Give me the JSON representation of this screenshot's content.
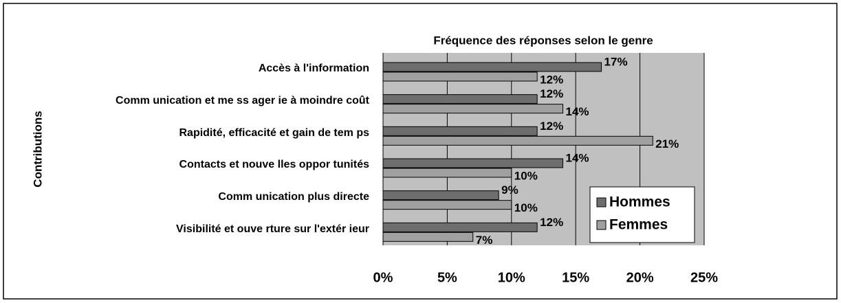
{
  "chart_data": {
    "type": "bar",
    "orientation": "horizontal",
    "title": "Fréquence des réponses selon le genre",
    "y_axis_label": "Contributions",
    "categories": [
      "Accès à l'information",
      "Comm unication et me ss ager ie à moindre coût",
      "Rapidité, efficacité et gain de tem ps",
      "Contacts et nouve lles oppor tunités",
      "Comm unication plus directe",
      "Visibilité et ouve rture sur l'extér ieur"
    ],
    "series": [
      {
        "name": "Hommes",
        "color": "#6e6e6e",
        "values": [
          17,
          12,
          12,
          14,
          9,
          12
        ],
        "value_labels": [
          "17%",
          "12%",
          "12%",
          "14%",
          "9%",
          "12%"
        ]
      },
      {
        "name": "Femmes",
        "color": "#a0a0a0",
        "values": [
          12,
          14,
          21,
          10,
          10,
          7
        ],
        "value_labels": [
          "12%",
          "14%",
          "21%",
          "10%",
          "10%",
          "7%"
        ]
      }
    ],
    "xlim": [
      0,
      25
    ],
    "xticks": [
      {
        "value": 0,
        "label": "0%"
      },
      {
        "value": 5,
        "label": "5%"
      },
      {
        "value": 10,
        "label": "10%"
      },
      {
        "value": 15,
        "label": "15%"
      },
      {
        "value": 20,
        "label": "20%"
      },
      {
        "value": 25,
        "label": "25%"
      }
    ],
    "grid": true,
    "legend": "lower right"
  }
}
